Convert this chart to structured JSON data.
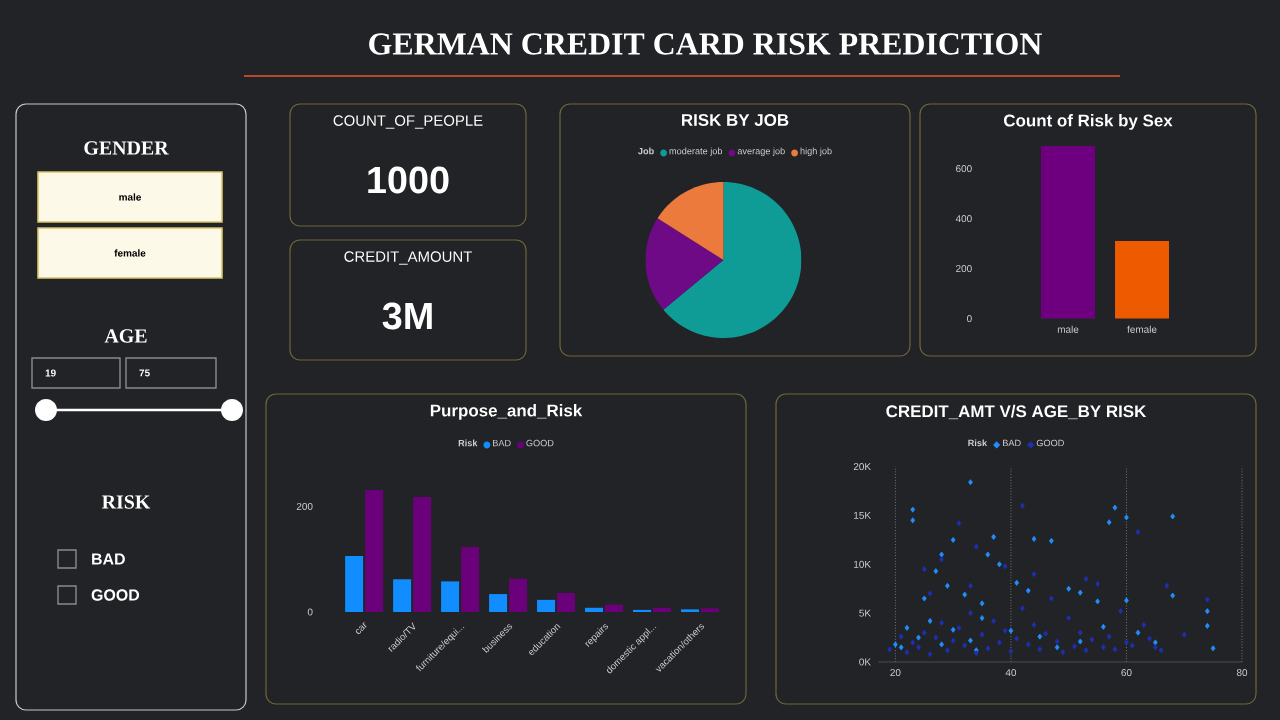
{
  "chart_data": [
    {
      "type": "other",
      "title": "GERMAN CREDIT CARD RISK PREDICTION"
    },
    {
      "type": "other",
      "annotations": [
        "GENDER",
        "male",
        "female",
        "AGE",
        "19",
        "75",
        "RISK",
        "BAD",
        "GOOD"
      ]
    },
    {
      "type": "other",
      "title": "COUNT_OF_PEOPLE",
      "annotations": [
        "1000"
      ]
    },
    {
      "type": "other",
      "title": "CREDIT_AMOUNT",
      "annotations": [
        "3M"
      ]
    },
    {
      "type": "pie",
      "title": "RISK BY JOB",
      "legend_title": "Job",
      "legend": "top",
      "categories": [
        "moderate job",
        "average job",
        "high job"
      ],
      "values": [
        64,
        20,
        16
      ],
      "colors": [
        "#0f9b96",
        "#6e0a86",
        "#ec7a3c"
      ]
    },
    {
      "type": "bar",
      "title": "Count of Risk by Sex",
      "categories": [
        "male",
        "female"
      ],
      "values": [
        690,
        310
      ],
      "colors": [
        "#6e0080",
        "#ee5a00"
      ],
      "ylim": [
        0,
        700
      ],
      "yticks": [
        0,
        200,
        400,
        600
      ]
    },
    {
      "type": "bar",
      "title": "Purpose_and_Risk",
      "legend_title": "Risk",
      "legend": "top",
      "categories": [
        "car",
        "radio/TV",
        "furniture/equi...",
        "business",
        "education",
        "repairs",
        "domestic appl...",
        "vacation/others"
      ],
      "series": [
        {
          "name": "BAD",
          "color": "#118dff",
          "values": [
            106,
            62,
            58,
            34,
            23,
            8,
            4,
            5
          ]
        },
        {
          "name": "GOOD",
          "color": "#6b007b",
          "values": [
            231,
            218,
            123,
            63,
            36,
            14,
            8,
            7
          ]
        }
      ],
      "ylim": [
        0,
        235
      ],
      "yticks": [
        0,
        200
      ]
    },
    {
      "type": "scatter",
      "title": "CREDIT_AMT V/S AGE_BY RISK",
      "legend_title": "Risk",
      "legend": "top",
      "grid": "x",
      "marker": "diamond",
      "xlim": [
        17,
        80
      ],
      "xticks": [
        20,
        40,
        60,
        80
      ],
      "ylim": [
        0,
        20000
      ],
      "yticks": [
        {
          "value": 0,
          "label": "0K"
        },
        {
          "value": 5000,
          "label": "5K"
        },
        {
          "value": 10000,
          "label": "10K"
        },
        {
          "value": 15000,
          "label": "15K"
        },
        {
          "value": 20000,
          "label": "20K"
        }
      ],
      "series": [
        {
          "name": "BAD",
          "color": "#1f8fff",
          "x": [
            23,
            23,
            28,
            33,
            30,
            37,
            36,
            44,
            47,
            57,
            58,
            60,
            68,
            74,
            74,
            75,
            68,
            60,
            25,
            27,
            29,
            32,
            35,
            38,
            41,
            43,
            50,
            52,
            55,
            62,
            65,
            22,
            24,
            26,
            28,
            30,
            33,
            35,
            40,
            45,
            48,
            52,
            56,
            20,
            21,
            34
          ],
          "values": [
            15600,
            14500,
            11000,
            18400,
            12500,
            12800,
            11000,
            12600,
            12400,
            14300,
            15800,
            14800,
            14900,
            5200,
            3700,
            1400,
            6800,
            6300,
            6500,
            9300,
            7800,
            6900,
            6000,
            10000,
            8100,
            7300,
            7500,
            7100,
            6200,
            3000,
            2000,
            3500,
            2500,
            4200,
            1800,
            3300,
            2200,
            4500,
            3200,
            2600,
            1500,
            2100,
            3600,
            1800,
            1500,
            1200
          ]
        },
        {
          "name": "GOOD",
          "color": "#1e2fb0",
          "x": [
            22,
            23,
            24,
            25,
            26,
            27,
            28,
            29,
            30,
            31,
            32,
            33,
            34,
            35,
            36,
            37,
            38,
            39,
            40,
            41,
            42,
            43,
            44,
            45,
            46,
            47,
            48,
            49,
            50,
            51,
            52,
            53,
            54,
            55,
            56,
            57,
            58,
            59,
            60,
            61,
            63,
            64,
            65,
            66,
            67,
            70,
            74,
            25,
            28,
            34,
            39,
            44,
            53,
            62,
            31,
            42,
            26,
            33,
            21,
            19
          ],
          "values": [
            1000,
            2000,
            1500,
            3000,
            800,
            2500,
            4000,
            1200,
            2200,
            3500,
            1700,
            5000,
            900,
            2800,
            1400,
            4200,
            2000,
            3200,
            1100,
            2400,
            5500,
            1800,
            3800,
            1300,
            2900,
            6500,
            2100,
            1000,
            4500,
            1600,
            3000,
            1200,
            2300,
            8000,
            1500,
            2600,
            1300,
            5200,
            2000,
            1700,
            3800,
            2400,
            1500,
            1200,
            7800,
            2800,
            6400,
            9500,
            10500,
            11800,
            9800,
            9000,
            8500,
            13300,
            14200,
            16000,
            7000,
            7800,
            2600,
            1300
          ]
        }
      ]
    }
  ]
}
